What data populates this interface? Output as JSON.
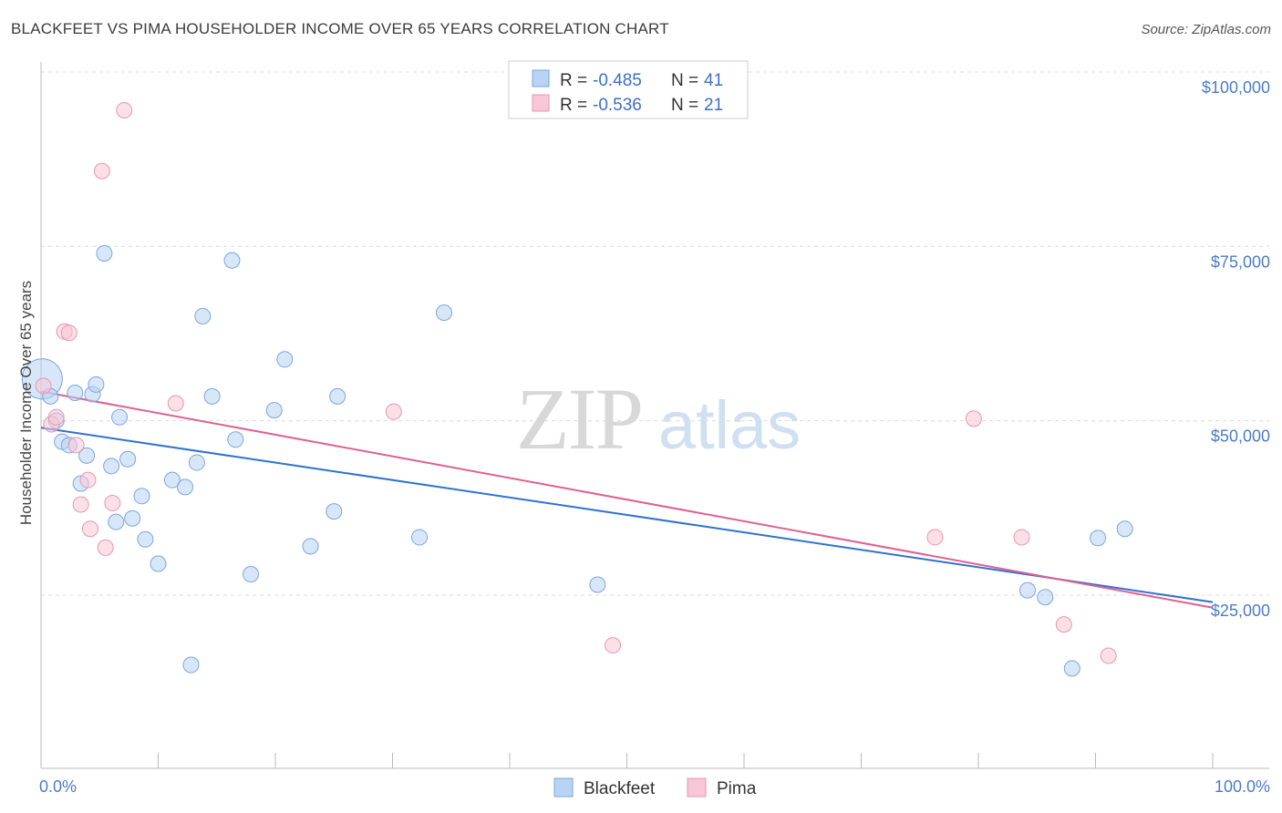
{
  "title": "BLACKFEET VS PIMA HOUSEHOLDER INCOME OVER 65 YEARS CORRELATION CHART",
  "source": "Source: ZipAtlas.com",
  "watermark": {
    "zip": "ZIP",
    "atlas": "atlas"
  },
  "colors": {
    "blackfeet_fill": "#b8d3f3",
    "blackfeet_stroke": "#7aa6e0",
    "blackfeet_line": "#2f72d0",
    "pima_fill": "#f8c6d6",
    "pima_stroke": "#e896b0",
    "pima_line": "#e06090",
    "tick_label": "#4a7cc9",
    "grid": "#dcdcdc"
  },
  "legend": {
    "rows": [
      {
        "r_label": "R = ",
        "r_value": "-0.485",
        "n_label": "N = ",
        "n_value": "41"
      },
      {
        "r_label": "R = ",
        "r_value": "-0.536",
        "n_label": "N = ",
        "n_value": "21"
      }
    ]
  },
  "bottom_legend": [
    "Blackfeet",
    "Pima"
  ],
  "chart_data": {
    "type": "scatter",
    "title": "BLACKFEET VS PIMA HOUSEHOLDER INCOME OVER 65 YEARS CORRELATION CHART",
    "xlabel": "",
    "ylabel": "Householder Income Over 65 years",
    "xlim": [
      0,
      100
    ],
    "ylim": [
      0,
      105000
    ],
    "x_tick_labels": [
      "0.0%",
      "100.0%"
    ],
    "y_ticks": [
      25000,
      50000,
      75000,
      100000
    ],
    "y_tick_labels": [
      "$25,000",
      "$50,000",
      "$75,000",
      "$100,000"
    ],
    "grid": "horizontal dashed",
    "legend_position": "top-center",
    "series": [
      {
        "name": "Blackfeet",
        "r": -0.485,
        "n": 41,
        "trend": {
          "x": [
            0,
            100
          ],
          "y": [
            49000,
            24000
          ]
        },
        "points": [
          {
            "x": 0.1,
            "y": 56000,
            "big": true
          },
          {
            "x": 0.8,
            "y": 53500
          },
          {
            "x": 1.3,
            "y": 50000
          },
          {
            "x": 1.8,
            "y": 47000
          },
          {
            "x": 2.4,
            "y": 46500
          },
          {
            "x": 2.9,
            "y": 54000
          },
          {
            "x": 3.4,
            "y": 41000
          },
          {
            "x": 3.9,
            "y": 45000
          },
          {
            "x": 4.4,
            "y": 53800
          },
          {
            "x": 4.7,
            "y": 55200
          },
          {
            "x": 5.4,
            "y": 74000
          },
          {
            "x": 6.0,
            "y": 43500
          },
          {
            "x": 6.4,
            "y": 35500
          },
          {
            "x": 6.7,
            "y": 50500
          },
          {
            "x": 7.4,
            "y": 44500
          },
          {
            "x": 7.8,
            "y": 36000
          },
          {
            "x": 8.6,
            "y": 39200
          },
          {
            "x": 8.9,
            "y": 33000
          },
          {
            "x": 10.0,
            "y": 29500
          },
          {
            "x": 11.2,
            "y": 41500
          },
          {
            "x": 12.3,
            "y": 40500
          },
          {
            "x": 12.8,
            "y": 15000
          },
          {
            "x": 13.3,
            "y": 44000
          },
          {
            "x": 13.8,
            "y": 65000
          },
          {
            "x": 14.6,
            "y": 53500
          },
          {
            "x": 16.3,
            "y": 73000
          },
          {
            "x": 16.6,
            "y": 47300
          },
          {
            "x": 17.9,
            "y": 28000
          },
          {
            "x": 19.9,
            "y": 51500
          },
          {
            "x": 20.8,
            "y": 58800
          },
          {
            "x": 23.0,
            "y": 32000
          },
          {
            "x": 25.0,
            "y": 37000
          },
          {
            "x": 25.3,
            "y": 53500
          },
          {
            "x": 32.3,
            "y": 33300
          },
          {
            "x": 34.4,
            "y": 65500
          },
          {
            "x": 47.5,
            "y": 26500
          },
          {
            "x": 84.2,
            "y": 25700
          },
          {
            "x": 85.7,
            "y": 24700
          },
          {
            "x": 88.0,
            "y": 14500
          },
          {
            "x": 90.2,
            "y": 33200
          },
          {
            "x": 92.5,
            "y": 34500
          }
        ]
      },
      {
        "name": "Pima",
        "r": -0.536,
        "n": 21,
        "trend": {
          "x": [
            0,
            100
          ],
          "y": [
            54200,
            23200
          ]
        },
        "points": [
          {
            "x": 0.2,
            "y": 55000
          },
          {
            "x": 0.9,
            "y": 49500
          },
          {
            "x": 1.3,
            "y": 50500
          },
          {
            "x": 2.0,
            "y": 62800
          },
          {
            "x": 2.4,
            "y": 62600
          },
          {
            "x": 3.0,
            "y": 46500
          },
          {
            "x": 3.4,
            "y": 38000
          },
          {
            "x": 4.0,
            "y": 41500
          },
          {
            "x": 4.2,
            "y": 34500
          },
          {
            "x": 5.2,
            "y": 85800
          },
          {
            "x": 5.5,
            "y": 31800
          },
          {
            "x": 6.1,
            "y": 38200
          },
          {
            "x": 7.1,
            "y": 94500
          },
          {
            "x": 11.5,
            "y": 52500
          },
          {
            "x": 30.1,
            "y": 51300
          },
          {
            "x": 48.8,
            "y": 17800
          },
          {
            "x": 76.3,
            "y": 33300
          },
          {
            "x": 79.6,
            "y": 50300
          },
          {
            "x": 83.7,
            "y": 33300
          },
          {
            "x": 87.3,
            "y": 20800
          },
          {
            "x": 91.1,
            "y": 16300
          }
        ]
      }
    ]
  }
}
